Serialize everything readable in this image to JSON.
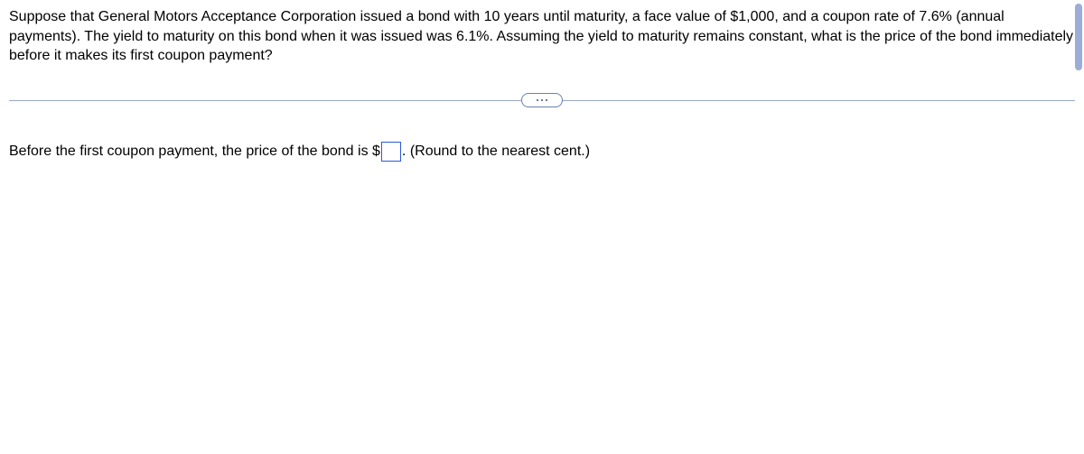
{
  "question": {
    "text": "Suppose that General Motors Acceptance Corporation issued a bond with 10 years until maturity, a face value of $1,000, and a coupon rate of 7.6% (annual payments). The yield to maturity on this bond when it was issued was 6.1%. Assuming the yield to maturity remains constant, what is the price of the bond immediately before it makes its first coupon payment?"
  },
  "answer": {
    "prefix": "Before the first coupon payment, the price of the bond is $",
    "input_value": "",
    "suffix": ". (Round to the nearest cent.)"
  },
  "colors": {
    "input_border": "#2a5bd7",
    "divider": "#9aa7c4",
    "pill_border": "#6b7fb3",
    "scrollbar": "#9caed6",
    "text": "#000000",
    "background": "#ffffff"
  }
}
